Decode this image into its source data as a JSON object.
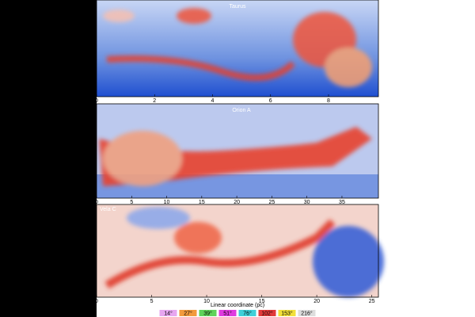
{
  "chart_data": [
    {
      "type": "image",
      "title": "Taurus",
      "xlim": [
        0,
        9.72
      ],
      "xticks": [
        0,
        2,
        4,
        6,
        8
      ]
    },
    {
      "type": "image",
      "title": "Orion A",
      "xlim": [
        0,
        40.2
      ],
      "xticks": [
        0,
        5,
        10,
        15,
        20,
        25,
        30,
        35
      ]
    },
    {
      "type": "image",
      "title": "Vela C",
      "xlim": [
        0,
        25.6
      ],
      "xticks": [
        0,
        5,
        10,
        15,
        20,
        25
      ]
    }
  ],
  "xlabel": "Linear coordinate (pc)",
  "legend": [
    {
      "label": "14°",
      "color": "#e7a6f0"
    },
    {
      "label": "27°",
      "color": "#f29a3c"
    },
    {
      "label": "39°",
      "color": "#5fd35a"
    },
    {
      "label": "51°",
      "color": "#e03be0"
    },
    {
      "label": "76°",
      "color": "#3fd0d8"
    },
    {
      "label": "102°",
      "color": "#e23a3a"
    },
    {
      "label": "153°",
      "color": "#f2e03a"
    },
    {
      "label": "216°",
      "color": "#dddddd"
    }
  ]
}
